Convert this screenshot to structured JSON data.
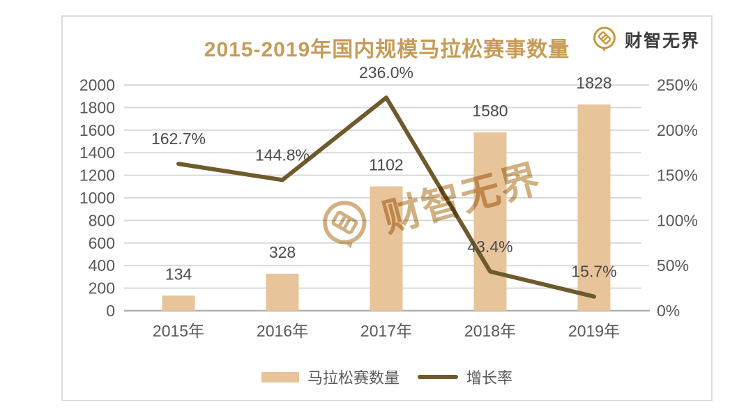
{
  "title": "2015-2019年国内规模马拉松赛事数量",
  "brand": {
    "name": "财智无界",
    "logo": "knot-seal-icon"
  },
  "watermark": {
    "text": "财智无界"
  },
  "legend": {
    "bar_label": "马拉松赛数量",
    "line_label": "增长率"
  },
  "colors": {
    "bar": "#e7c49a",
    "line": "#6f5a2c",
    "title": "#c79b58",
    "grid": "#d9d9d9",
    "axis": "#b0b0b0",
    "tick_text": "#595959",
    "data_label": "#4a4a4a",
    "brand_gold": "#c8963c",
    "brand_text": "#3d3d3d",
    "watermark": "#c9a26b"
  },
  "chart_data": {
    "type": "bar",
    "title": "2015-2019年国内规模马拉松赛事数量",
    "categories": [
      "2015年",
      "2016年",
      "2017年",
      "2018年",
      "2019年"
    ],
    "series": [
      {
        "name": "马拉松赛数量",
        "type": "bar",
        "axis": "left",
        "values": [
          134,
          328,
          1102,
          1580,
          1828
        ],
        "labels": [
          "134",
          "328",
          "1102",
          "1580",
          "1828"
        ]
      },
      {
        "name": "增长率",
        "type": "line",
        "axis": "right",
        "values": [
          162.7,
          144.8,
          236.0,
          43.4,
          15.7
        ],
        "labels": [
          "162.7%",
          "144.8%",
          "236.0%",
          "43.4%",
          "15.7%"
        ]
      }
    ],
    "left_axis": {
      "min": 0,
      "max": 2000,
      "step": 200,
      "ticks": [
        "0",
        "200",
        "400",
        "600",
        "800",
        "1000",
        "1200",
        "1400",
        "1600",
        "1800",
        "2000"
      ]
    },
    "right_axis": {
      "min": 0,
      "max": 250,
      "step": 50,
      "ticks": [
        "0%",
        "50%",
        "100%",
        "150%",
        "200%",
        "250%"
      ]
    },
    "grid": true,
    "legend_position": "bottom"
  }
}
